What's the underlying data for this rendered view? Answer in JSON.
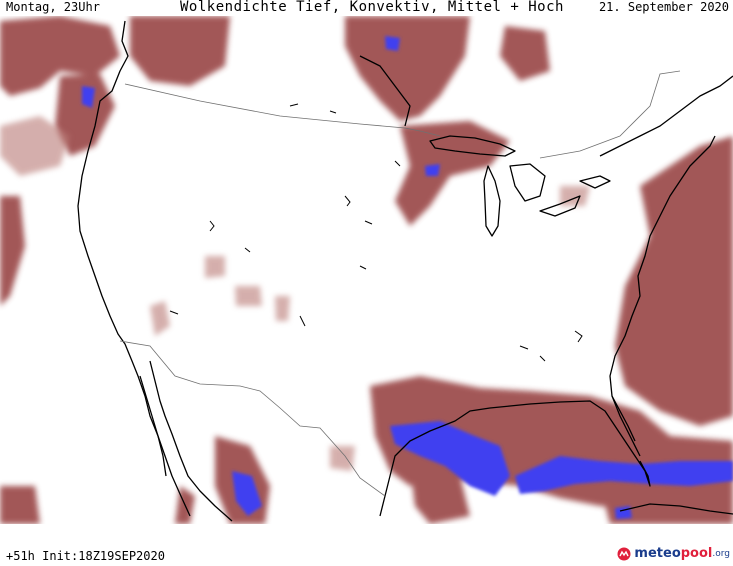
{
  "header": {
    "left": "Montag, 23Uhr",
    "title": "Wolkendichte  Tief, Konvektiv, Mittel + Hoch",
    "right": "21. September 2020"
  },
  "footer": {
    "run": "+51h Init:18Z19SEP2020"
  },
  "logo": {
    "part1": "meteo",
    "part2": "pool",
    "part3": ".org"
  },
  "colors": {
    "cloud": "#9b4a48",
    "cloud_light": "#b97a76",
    "convective": "#4040f0",
    "coast": "#000000",
    "border": "#707070"
  }
}
